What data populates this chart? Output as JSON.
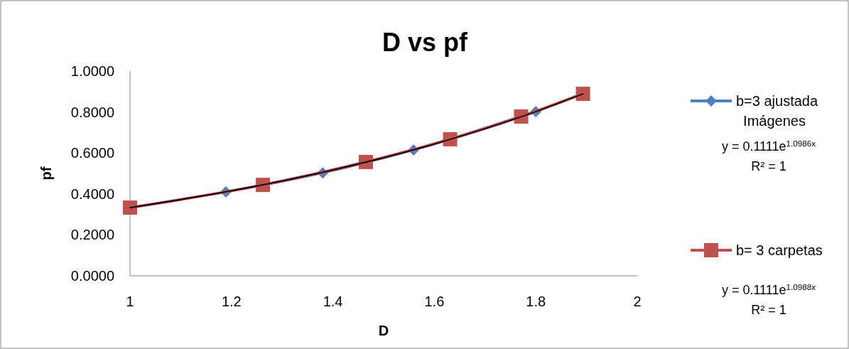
{
  "chart_data": {
    "type": "line",
    "title": "D vs pf",
    "xlabel": "D",
    "ylabel": "pf",
    "xlim": [
      1,
      2
    ],
    "xticks": [
      1,
      1.2,
      1.4,
      1.6,
      1.8,
      2
    ],
    "ylim": [
      0,
      1
    ],
    "yticks": [
      {
        "value": 0,
        "label": "0.0000"
      },
      {
        "value": 0.2,
        "label": "0.2000"
      },
      {
        "value": 0.4,
        "label": "0.4000"
      },
      {
        "value": 0.6,
        "label": "0.6000"
      },
      {
        "value": 0.8,
        "label": "0.8000"
      },
      {
        "value": 1,
        "label": "1.0000"
      }
    ],
    "grid": false,
    "legend": "right",
    "series": [
      {
        "name": "b=3 ajustada Imágenes",
        "color": "#4f81bd",
        "marker": "diamond",
        "x": [
          1.189,
          1.38,
          1.559,
          1.8
        ],
        "values": [
          0.41,
          0.503,
          0.615,
          0.802
        ]
      },
      {
        "name": "b= 3 carpetas",
        "color": "#c0504d",
        "marker": "square",
        "x": [
          1,
          1.262,
          1.465,
          1.631,
          1.771,
          1.893
        ],
        "values": [
          0.333,
          0.444,
          0.556,
          0.667,
          0.778,
          0.889
        ]
      },
      {
        "type": "line",
        "color": "#000000",
        "marker": "none",
        "x": [
          1,
          1.2,
          1.4,
          1.6,
          1.8,
          1.893
        ],
        "values": [
          0.333,
          0.415,
          0.517,
          0.644,
          0.802,
          0.889
        ]
      }
    ],
    "annotations": [
      "y = 0.1111e$^{1.0986x}$",
      "R² = 1",
      "y = 0.1111e$^{1.0988x}$",
      "R² = 1"
    ]
  }
}
